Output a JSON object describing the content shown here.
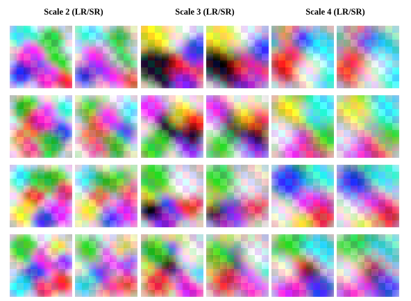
{
  "figure": {
    "headers": [
      "Scale 2 (LR/SR)",
      "Scale 3 (LR/SR)",
      "Scale 4 (LR/SR)"
    ],
    "rows": 4,
    "pairs_per_scale": 2,
    "colors": {
      "red": "#ff1a1a",
      "green": "#22dd22",
      "blue": "#1a2aff",
      "magenta": "#ff22ff",
      "cyan": "#22ffff",
      "yellow": "#ffff22",
      "white": "#ffffff",
      "black": "#000000",
      "orange": "#ff8a2a",
      "pink": "#ff3d8a",
      "teal": "#2ab8c8",
      "purple": "#9a22ff"
    }
  }
}
